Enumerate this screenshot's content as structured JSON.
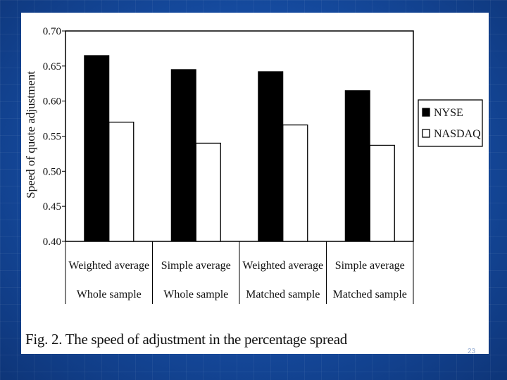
{
  "slide": {
    "caption": "Fig. 2. The speed of adjustment in the percentage spread",
    "slide_number": "23",
    "background_color": "#154a9e"
  },
  "chart_data": {
    "type": "bar",
    "ylabel": "Speed of quote adjustment",
    "ylim": [
      0.4,
      0.7
    ],
    "yticks": [
      "0.70",
      "0.65",
      "0.60",
      "0.55",
      "0.50",
      "0.45",
      "0.40"
    ],
    "categories": [
      {
        "line1": "Weighted average",
        "line2": "Whole sample"
      },
      {
        "line1": "Simple average",
        "line2": "Whole sample"
      },
      {
        "line1": "Weighted average",
        "line2": "Matched sample"
      },
      {
        "line1": "Simple average",
        "line2": "Matched sample"
      }
    ],
    "series": [
      {
        "name": "NYSE",
        "values": [
          0.665,
          0.645,
          0.642,
          0.615
        ],
        "color": "#000000"
      },
      {
        "name": "NASDAQ",
        "values": [
          0.57,
          0.54,
          0.566,
          0.537
        ],
        "color": "#ffffff"
      }
    ],
    "legend": "right",
    "grid": false
  }
}
